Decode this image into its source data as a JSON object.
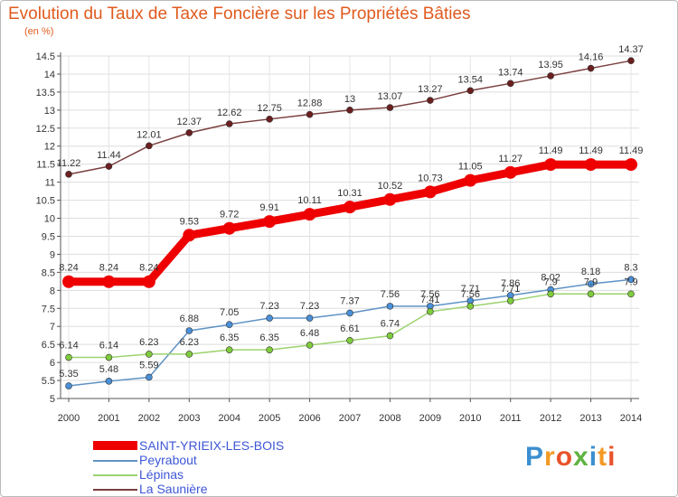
{
  "header": {
    "title": "Evolution du Taux de Taxe Foncière sur les Propriétés Bâties",
    "unit": "(en %)"
  },
  "brand": {
    "name": "Proxiti"
  },
  "chart_data": {
    "type": "line",
    "title": "Evolution du Taux de Taxe Foncière sur les Propriétés Bâties",
    "ylabel": "(en %)",
    "xlabel": "",
    "ylim": [
      5,
      14.5
    ],
    "yticks": [
      "5",
      "5.5",
      "6",
      "6.5",
      "7",
      "7.5",
      "8",
      "8.5",
      "9",
      "9.5",
      "10",
      "10.5",
      "11",
      "11.5",
      "12",
      "12.5",
      "13",
      "13.5",
      "14",
      "14.5"
    ],
    "x": [
      "2000",
      "2001",
      "2002",
      "2003",
      "2004",
      "2005",
      "2006",
      "2007",
      "2008",
      "2009",
      "2010",
      "2011",
      "2012",
      "2013",
      "2014"
    ],
    "grid": true,
    "legend_position": "bottom-left",
    "series": [
      {
        "name": "SAINT-YRIEIX-LES-BOIS",
        "values": [
          8.24,
          8.24,
          8.24,
          9.53,
          9.72,
          9.91,
          10.11,
          10.31,
          10.52,
          10.73,
          11.05,
          11.27,
          11.49,
          11.49,
          11.49
        ],
        "labels": [
          "8.24",
          "8.24",
          "8.24",
          "9.53",
          "9.72",
          "9.91",
          "10.11",
          "10.31",
          "10.52",
          "10.73",
          "11.05",
          "11.27",
          "11.49",
          "11.49",
          "11.49"
        ],
        "color": "#ee0000",
        "marker_color": "#ee0000",
        "label_color": "#333333"
      },
      {
        "name": "Peyrabout",
        "values": [
          5.35,
          5.48,
          5.59,
          6.88,
          7.05,
          7.23,
          7.23,
          7.37,
          7.56,
          7.56,
          7.71,
          7.86,
          8.02,
          8.18,
          8.3
        ],
        "labels": [
          "5.35",
          "5.48",
          "5.59",
          "6.88",
          "7.05",
          "7.23",
          "7.23",
          "7.37",
          "7.56",
          "7.56",
          "7.71",
          "7.86",
          "8.02",
          "8.18",
          "8.3"
        ],
        "color": "#5f93c6",
        "marker_color": "#4a90d9",
        "label_color": "#333333"
      },
      {
        "name": "Lépinas",
        "values": [
          6.14,
          6.14,
          6.23,
          6.23,
          6.35,
          6.35,
          6.48,
          6.61,
          6.74,
          7.41,
          7.56,
          7.71,
          7.9,
          7.9,
          7.9
        ],
        "labels": [
          "6.14",
          "6.14",
          "6.23",
          "6.23",
          "6.35",
          "6.35",
          "6.48",
          "6.61",
          "6.74",
          "7.41",
          "7.56",
          "7.71",
          "7.9",
          "7.9",
          "7.9"
        ],
        "color": "#9cd36e",
        "marker_color": "#7fcc3c",
        "label_color": "#333333"
      },
      {
        "name": "La Saunière",
        "values": [
          11.22,
          11.44,
          12.01,
          12.37,
          12.62,
          12.75,
          12.88,
          13,
          13.07,
          13.27,
          13.54,
          13.74,
          13.95,
          14.16,
          14.37
        ],
        "labels": [
          "11.22",
          "11.44",
          "12.01",
          "12.37",
          "12.62",
          "12.75",
          "12.88",
          "13",
          "13.07",
          "13.27",
          "13.54",
          "13.74",
          "13.95",
          "14.16",
          "14.37"
        ],
        "color": "#7a3f3f",
        "marker_color": "#6b1f1f",
        "label_color": "#333333"
      }
    ]
  }
}
